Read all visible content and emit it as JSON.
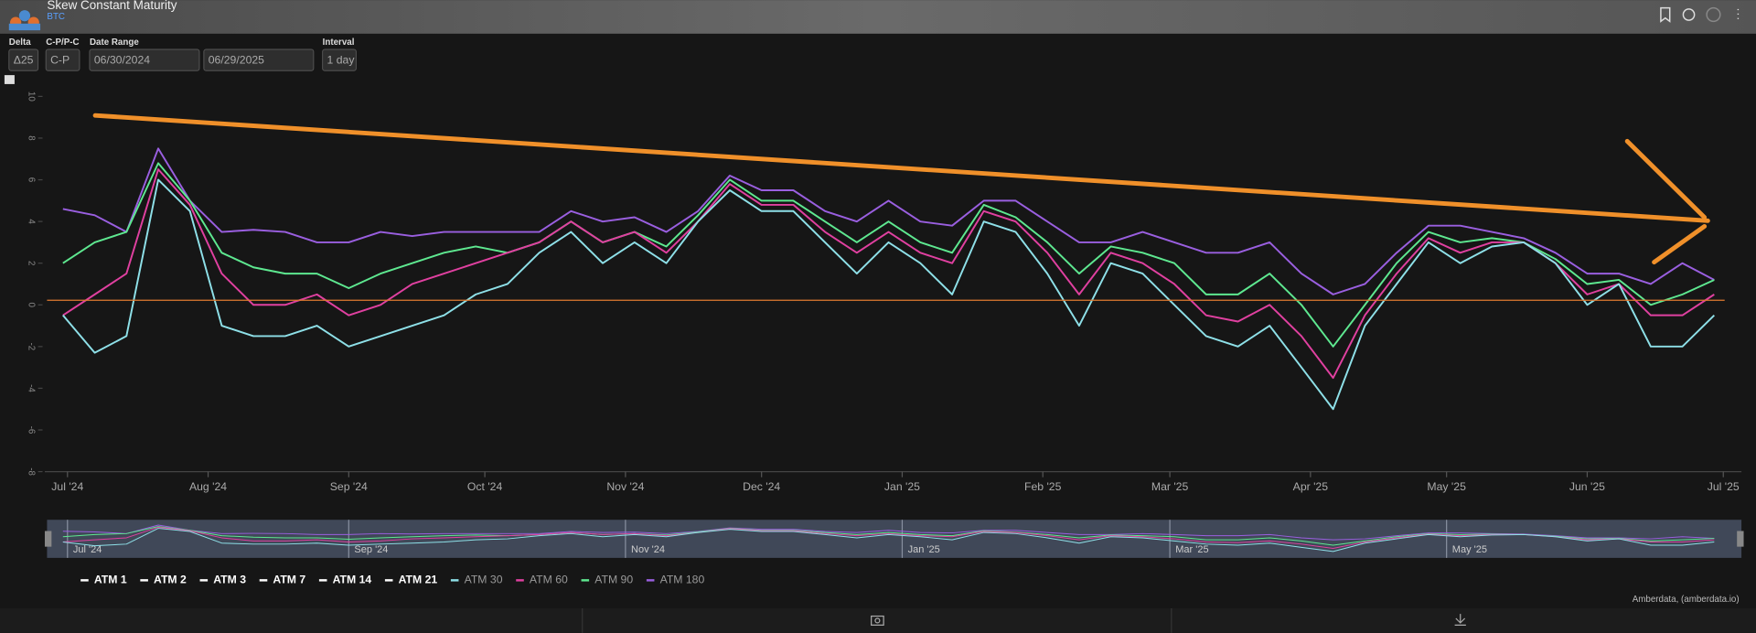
{
  "header": {
    "title": "Skew Constant Maturity",
    "subtitle": "BTC"
  },
  "controls": {
    "delta_label": "Delta",
    "delta_value": "Δ25",
    "cp_label": "C-P/P-C",
    "cp_value": "C-P",
    "date_label": "Date Range",
    "date_from": "06/30/2024",
    "date_to": "06/29/2025",
    "interval_label": "Interval",
    "interval_value": "1 day"
  },
  "footer": {
    "credit": "Amberdata, (amberdata.io)"
  },
  "chart_data": {
    "type": "line",
    "x": [
      "2024-06-30",
      "2024-07-07",
      "2024-07-14",
      "2024-07-21",
      "2024-07-28",
      "2024-08-04",
      "2024-08-11",
      "2024-08-18",
      "2024-08-25",
      "2024-09-01",
      "2024-09-08",
      "2024-09-15",
      "2024-09-22",
      "2024-09-29",
      "2024-10-06",
      "2024-10-13",
      "2024-10-20",
      "2024-10-27",
      "2024-11-03",
      "2024-11-10",
      "2024-11-17",
      "2024-11-24",
      "2024-12-01",
      "2024-12-08",
      "2024-12-15",
      "2024-12-22",
      "2024-12-29",
      "2025-01-05",
      "2025-01-12",
      "2025-01-19",
      "2025-01-26",
      "2025-02-02",
      "2025-02-09",
      "2025-02-16",
      "2025-02-23",
      "2025-03-02",
      "2025-03-09",
      "2025-03-16",
      "2025-03-23",
      "2025-03-30",
      "2025-04-06",
      "2025-04-13",
      "2025-04-20",
      "2025-04-27",
      "2025-05-04",
      "2025-05-11",
      "2025-05-18",
      "2025-05-25",
      "2025-06-01",
      "2025-06-08",
      "2025-06-15",
      "2025-06-22",
      "2025-06-29"
    ],
    "series": [
      {
        "name": "ATM 30",
        "color": "#8ee0e8",
        "values": [
          -0.5,
          -2.3,
          -1.5,
          6,
          4.5,
          -1,
          -1.5,
          -1.5,
          -1,
          -2,
          -1.5,
          -1,
          -0.5,
          0.5,
          1,
          2.5,
          3.5,
          2,
          3,
          2,
          4,
          5.5,
          4.5,
          4.5,
          3,
          1.5,
          3,
          2,
          0.5,
          4,
          3.5,
          1.5,
          -1,
          2,
          1.5,
          0,
          -1.5,
          -2,
          -1,
          -3,
          -5,
          -1,
          1,
          3,
          2,
          2.8,
          3,
          2,
          0,
          1,
          -2,
          -2,
          -0.5
        ]
      },
      {
        "name": "ATM 60",
        "color": "#e040a0",
        "values": [
          -0.5,
          0.5,
          1.5,
          6.5,
          4.8,
          1.5,
          0,
          0,
          0.5,
          -0.5,
          0,
          1,
          1.5,
          2,
          2.5,
          3,
          4,
          3,
          3.5,
          2.5,
          4,
          5.8,
          4.8,
          4.8,
          3.5,
          2.5,
          3.5,
          2.5,
          2,
          4.5,
          4,
          2.5,
          0.5,
          2.5,
          2,
          1,
          -0.5,
          -0.8,
          0,
          -1.5,
          -3.5,
          -0.5,
          1.5,
          3.2,
          2.5,
          3,
          3,
          2,
          0.5,
          1,
          -0.5,
          -0.5,
          0.5
        ]
      },
      {
        "name": "ATM 90",
        "color": "#5ee890",
        "values": [
          2,
          3,
          3.5,
          6.8,
          5,
          2.5,
          1.8,
          1.5,
          1.5,
          0.8,
          1.5,
          2,
          2.5,
          2.8,
          2.5,
          3,
          4,
          3,
          3.5,
          2.8,
          4.3,
          6,
          5,
          5,
          4,
          3,
          4,
          3,
          2.5,
          4.8,
          4.2,
          3,
          1.5,
          2.8,
          2.5,
          2,
          0.5,
          0.5,
          1.5,
          0,
          -2,
          0,
          2,
          3.5,
          3,
          3.2,
          3,
          2.2,
          1,
          1.2,
          0,
          0.5,
          1.2
        ]
      },
      {
        "name": "ATM 180",
        "color": "#9a5fe0",
        "values": [
          4.6,
          4.3,
          3.5,
          7.5,
          5,
          3.5,
          3.6,
          3.5,
          3,
          3,
          3.5,
          3.3,
          3.5,
          3.5,
          3.5,
          3.5,
          4.5,
          4,
          4.2,
          3.5,
          4.5,
          6.2,
          5.5,
          5.5,
          4.5,
          4,
          5,
          4,
          3.8,
          5,
          5,
          4,
          3,
          3,
          3.5,
          3,
          2.5,
          2.5,
          3,
          1.5,
          0.5,
          1,
          2.5,
          3.8,
          3.8,
          3.5,
          3.2,
          2.5,
          1.5,
          1.5,
          1,
          2,
          1.2
        ]
      }
    ],
    "inactive_legend": [
      "ATM 1",
      "ATM 2",
      "ATM 3",
      "ATM 7",
      "ATM 14",
      "ATM 21"
    ],
    "xlim": [
      "2024-06-26",
      "2025-07-05"
    ],
    "xticks": [
      {
        "value": "2024-07-01",
        "label": "Jul '24"
      },
      {
        "value": "2024-08-01",
        "label": "Aug '24"
      },
      {
        "value": "2024-09-01",
        "label": "Sep '24"
      },
      {
        "value": "2024-10-01",
        "label": "Oct '24"
      },
      {
        "value": "2024-11-01",
        "label": "Nov '24"
      },
      {
        "value": "2024-12-01",
        "label": "Dec '24"
      },
      {
        "value": "2025-01-01",
        "label": "Jan '25"
      },
      {
        "value": "2025-02-01",
        "label": "Feb '25"
      },
      {
        "value": "2025-03-01",
        "label": "Mar '25"
      },
      {
        "value": "2025-04-01",
        "label": "Apr '25"
      },
      {
        "value": "2025-05-01",
        "label": "May '25"
      },
      {
        "value": "2025-06-01",
        "label": "Jun '25"
      },
      {
        "value": "2025-07-01",
        "label": "Jul '25"
      }
    ],
    "navigator_ticks": [
      {
        "value": "2024-07-01",
        "label": "Jul '24"
      },
      {
        "value": "2024-09-01",
        "label": "Sep '24"
      },
      {
        "value": "2024-11-01",
        "label": "Nov '24"
      },
      {
        "value": "2025-01-01",
        "label": "Jan '25"
      },
      {
        "value": "2025-03-01",
        "label": "Mar '25"
      },
      {
        "value": "2025-05-01",
        "label": "May '25"
      }
    ],
    "ylim": [
      -8,
      10
    ],
    "yticks": [
      10,
      8,
      6,
      4,
      2,
      0,
      -2,
      -4,
      -6,
      -8
    ]
  }
}
